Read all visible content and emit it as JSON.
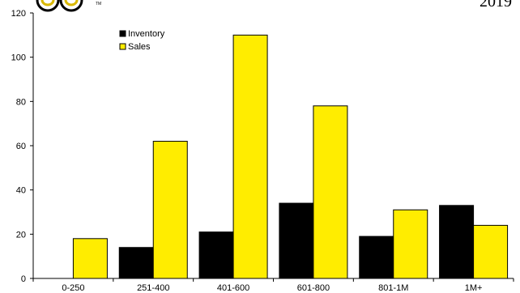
{
  "corner_text": "2019",
  "logo_mark": "TM",
  "chart_data": {
    "type": "bar",
    "categories": [
      "0-250",
      "251-400",
      "401-600",
      "601-800",
      "801-1M",
      "1M+"
    ],
    "series": [
      {
        "name": "Inventory",
        "color": "#000000",
        "values": [
          0,
          14,
          21,
          34,
          19,
          33
        ]
      },
      {
        "name": "Sales",
        "color": "#FFED00",
        "values": [
          18,
          62,
          110,
          78,
          31,
          24
        ]
      }
    ],
    "ylim": [
      0,
      120
    ],
    "yticks": [
      0,
      20,
      40,
      60,
      80,
      100,
      120
    ],
    "grid": false,
    "legend": "top-left"
  }
}
